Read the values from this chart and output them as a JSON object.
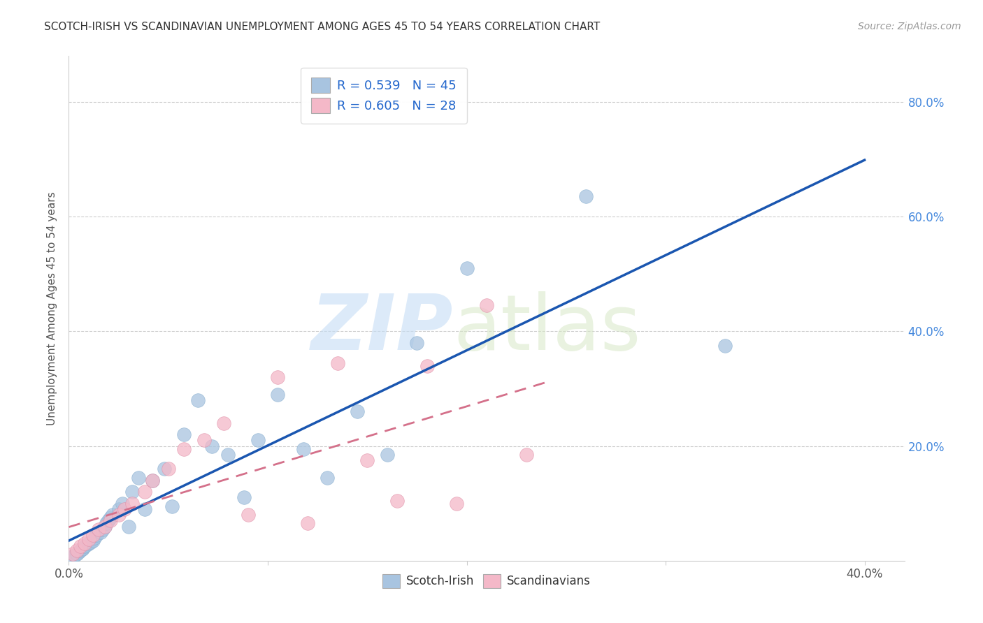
{
  "title": "SCOTCH-IRISH VS SCANDINAVIAN UNEMPLOYMENT AMONG AGES 45 TO 54 YEARS CORRELATION CHART",
  "source": "Source: ZipAtlas.com",
  "ylabel": "Unemployment Among Ages 45 to 54 years",
  "xlim": [
    0.0,
    0.42
  ],
  "ylim": [
    0.0,
    0.88
  ],
  "xtick_vals": [
    0.0,
    0.1,
    0.2,
    0.3,
    0.4
  ],
  "xtick_labels": [
    "0.0%",
    "",
    "",
    "",
    "40.0%"
  ],
  "ytick_vals": [
    0.2,
    0.4,
    0.6,
    0.8
  ],
  "right_ytick_labels": [
    "20.0%",
    "40.0%",
    "60.0%",
    "80.0%"
  ],
  "right_ytick_vals": [
    0.2,
    0.4,
    0.6,
    0.8
  ],
  "scotch_irish_color": "#a8c4e0",
  "scandinavian_color": "#f4b8c8",
  "scotch_irish_line_color": "#1a56b0",
  "scandinavian_line_color": "#d4708a",
  "R_scotch": 0.539,
  "N_scotch": 45,
  "R_scand": 0.605,
  "N_scand": 28,
  "scotch_irish_x": [
    0.002,
    0.003,
    0.004,
    0.005,
    0.006,
    0.007,
    0.007,
    0.008,
    0.009,
    0.01,
    0.011,
    0.012,
    0.013,
    0.014,
    0.016,
    0.017,
    0.018,
    0.019,
    0.02,
    0.021,
    0.022,
    0.025,
    0.027,
    0.03,
    0.032,
    0.035,
    0.038,
    0.042,
    0.048,
    0.052,
    0.058,
    0.065,
    0.072,
    0.08,
    0.088,
    0.095,
    0.105,
    0.118,
    0.13,
    0.145,
    0.16,
    0.175,
    0.2,
    0.26,
    0.33
  ],
  "scotch_irish_y": [
    0.008,
    0.01,
    0.012,
    0.015,
    0.018,
    0.02,
    0.022,
    0.025,
    0.028,
    0.03,
    0.033,
    0.035,
    0.04,
    0.045,
    0.05,
    0.055,
    0.06,
    0.065,
    0.07,
    0.075,
    0.08,
    0.09,
    0.1,
    0.06,
    0.12,
    0.145,
    0.09,
    0.14,
    0.16,
    0.095,
    0.22,
    0.28,
    0.2,
    0.185,
    0.11,
    0.21,
    0.29,
    0.195,
    0.145,
    0.26,
    0.185,
    0.38,
    0.51,
    0.635,
    0.375
  ],
  "scandinavian_x": [
    0.002,
    0.004,
    0.006,
    0.008,
    0.01,
    0.012,
    0.015,
    0.018,
    0.021,
    0.025,
    0.028,
    0.032,
    0.038,
    0.042,
    0.05,
    0.058,
    0.068,
    0.078,
    0.09,
    0.105,
    0.12,
    0.135,
    0.15,
    0.165,
    0.18,
    0.195,
    0.21,
    0.23
  ],
  "scandinavian_y": [
    0.012,
    0.018,
    0.025,
    0.03,
    0.038,
    0.045,
    0.055,
    0.06,
    0.07,
    0.08,
    0.09,
    0.1,
    0.12,
    0.14,
    0.16,
    0.195,
    0.21,
    0.24,
    0.08,
    0.32,
    0.065,
    0.345,
    0.175,
    0.105,
    0.34,
    0.1,
    0.445,
    0.185
  ],
  "background_color": "#ffffff",
  "grid_color": "#cccccc"
}
